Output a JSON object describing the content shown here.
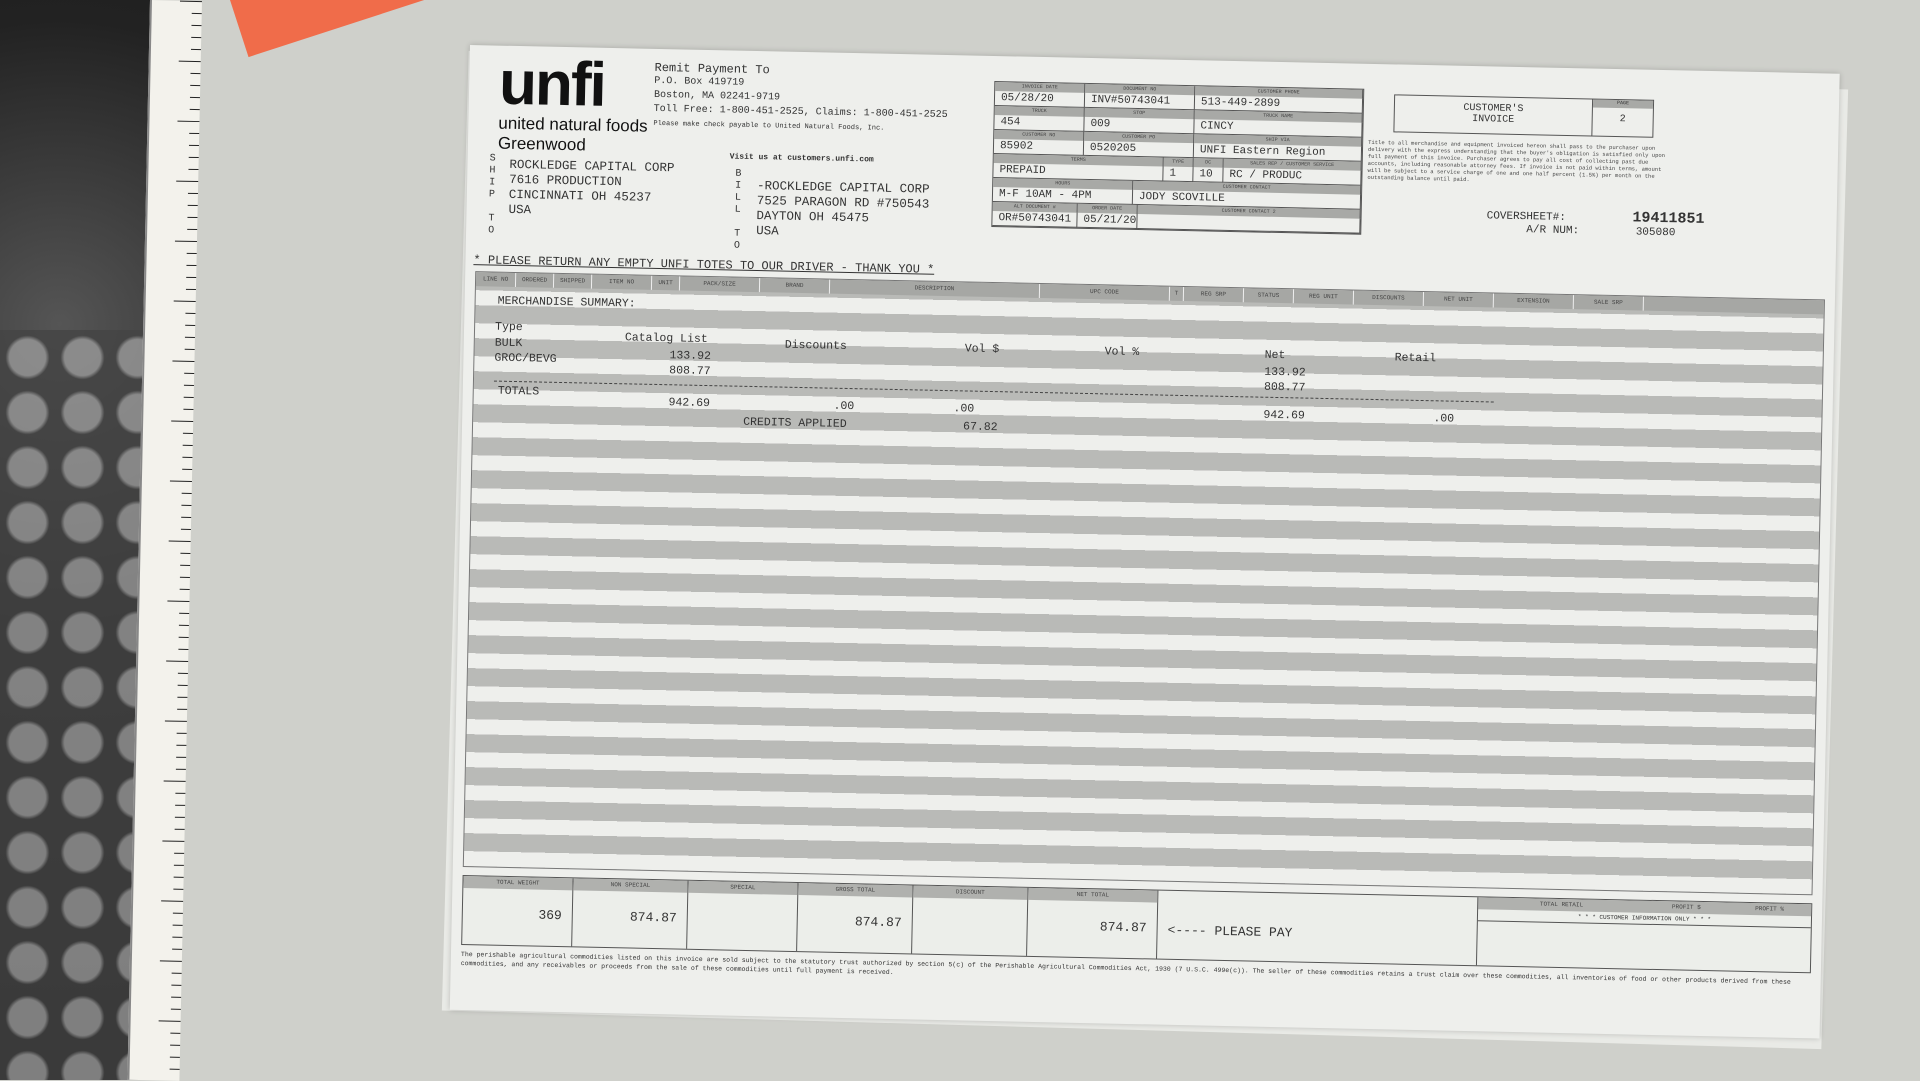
{
  "brand": {
    "logo_word": "unfi",
    "logo_sub": "united natural foods",
    "division": "Greenwood"
  },
  "remit": {
    "title": "Remit Payment To",
    "po_box": "P.O. Box 419719",
    "city": "Boston, MA 02241-9719",
    "phones": "Toll Free: 1-800-451-2525, Claims: 1-800-451-2525",
    "payable": "Please make check payable to United Natural Foods, Inc.",
    "visit": "Visit us at customers.unfi.com"
  },
  "ship_to": {
    "letters": [
      "S",
      "H",
      "I",
      "P",
      "",
      "T",
      "O"
    ],
    "lines": [
      "ROCKLEDGE CAPITAL CORP",
      "7616 PRODUCTION",
      "CINCINNATI OH  45237",
      "USA"
    ]
  },
  "bill_to": {
    "letters": [
      "B",
      "I",
      "L",
      "L",
      "",
      "T",
      "O"
    ],
    "lines": [
      "-ROCKLEDGE CAPITAL CORP",
      "7525 PARAGON RD #750543",
      "DAYTON OH 45475",
      "USA"
    ]
  },
  "header_fields": {
    "invoice_date": {
      "label": "INVOICE DATE",
      "value": "05/28/20"
    },
    "document_no": {
      "label": "DOCUMENT NO",
      "value": "INV#50743041"
    },
    "customer_phone": {
      "label": "CUSTOMER PHONE",
      "value": "513-449-2899"
    },
    "truck": {
      "label": "TRUCK",
      "value": "454"
    },
    "stop": {
      "label": "STOP",
      "value": "009"
    },
    "truck_name": {
      "label": "TRUCK NAME",
      "value": "CINCY"
    },
    "customer_no": {
      "label": "CUSTOMER NO",
      "value": "85902"
    },
    "customer_po": {
      "label": "CUSTOMER PO",
      "value": "0520205"
    },
    "ship_via": {
      "label": "SHIP VIA",
      "value": "UNFI Eastern Region"
    },
    "terms": {
      "label": "TERMS",
      "value": "PREPAID"
    },
    "type": {
      "label": "TYPE",
      "value": "1"
    },
    "dc": {
      "label": "DC",
      "value": "10"
    },
    "sales_rep": {
      "label": "SALES REP / CUSTOMER SERVICE",
      "value": "RC / PRODUC"
    },
    "hours": {
      "label": "HOURS",
      "value": "M-F 10AM - 4PM"
    },
    "customer_contact": {
      "label": "CUSTOMER CONTACT",
      "value": "JODY SCOVILLE"
    },
    "alt_document": {
      "label": "ALT DOCUMENT #",
      "value": "OR#50743041"
    },
    "order_date": {
      "label": "ORDER DATE",
      "value": "05/21/20"
    },
    "customer_contact2": {
      "label": "CUSTOMER CONTACT 2",
      "value": ""
    }
  },
  "customer_invoice": {
    "title_line1": "CUSTOMER'S",
    "title_line2": "INVOICE",
    "page_label": "PAGE",
    "page": "2"
  },
  "terms_text": "Title to all merchandise and equipment invoiced hereon shall pass to the purchaser upon delivery with the express understanding that the buyer's obligation is satisfied only upon full payment of this invoice. Purchaser agrees to pay all cost of collecting past due accounts, including reasonable attorney fees. If invoice is not paid within terms, amount will be subject to a service charge of one and one half percent (1.5%) per month on the outstanding balance until paid.",
  "coversheet": {
    "label": "COVERSHEET#:",
    "value": "19411851",
    "ar_label": "A/R NUM:",
    "ar_value": "305080"
  },
  "notice": "* PLEASE RETURN ANY EMPTY UNFI TOTES TO OUR DRIVER - THANK YOU *",
  "columns": [
    "LINE NO",
    "ORDERED",
    "SHIPPED",
    "ITEM NO",
    "UNIT",
    "PACK/SIZE",
    "BRAND",
    "DESCRIPTION",
    "UPC CODE",
    "T",
    "REG SRP",
    "STATUS",
    "REG UNIT",
    "DISCOUNTS",
    "NET UNIT",
    "EXTENSION",
    "SALE SRP"
  ],
  "summary": {
    "title": "MERCHANDISE SUMMARY:",
    "headers": {
      "type": "Type",
      "catalog": "Catalog List",
      "discounts": "Discounts",
      "vol_dollar": "Vol $",
      "vol_pct": "Vol %",
      "net": "Net",
      "retail": "Retail"
    },
    "rows": [
      {
        "type": "BULK",
        "catalog": "133.92",
        "net": "133.92"
      },
      {
        "type": "GROC/BEVG",
        "catalog": "808.77",
        "net": "808.77"
      }
    ],
    "totals": {
      "label": "TOTALS",
      "catalog": "942.69",
      "discounts": ".00",
      "vol_dollar": ".00",
      "net": "942.69",
      "retail": ".00"
    },
    "credits": {
      "label": "CREDITS APPLIED",
      "value": "67.82"
    }
  },
  "totals_bar": {
    "total_weight": {
      "label": "TOTAL WEIGHT",
      "value": "369"
    },
    "non_special": {
      "label": "NON SPECIAL",
      "value": "874.87"
    },
    "special": {
      "label": "SPECIAL",
      "value": ""
    },
    "gross_total": {
      "label": "GROSS TOTAL",
      "value": "874.87"
    },
    "discount": {
      "label": "DISCOUNT",
      "value": ""
    },
    "net_total": {
      "label": "NET TOTAL",
      "value": "874.87"
    },
    "please_pay": "<---- PLEASE PAY",
    "total_retail": "TOTAL RETAIL",
    "profit_dollar": "PROFIT $",
    "profit_pct": "PROFIT %",
    "cust_info": "* * * CUSTOMER INFORMATION ONLY * * *"
  },
  "legal": "The perishable agricultural commodities listed on this invoice are sold subject to the statutory trust authorized by section 5(c) of the Perishable Agricultural Commodities Act, 1930 (7 U.S.C. 499e(c)). The seller of these commodities retains a trust claim over these commodities, all inventories of food or other products derived from these commodities, and any receivables or proceeds from the sale of these commodities until full payment is received."
}
